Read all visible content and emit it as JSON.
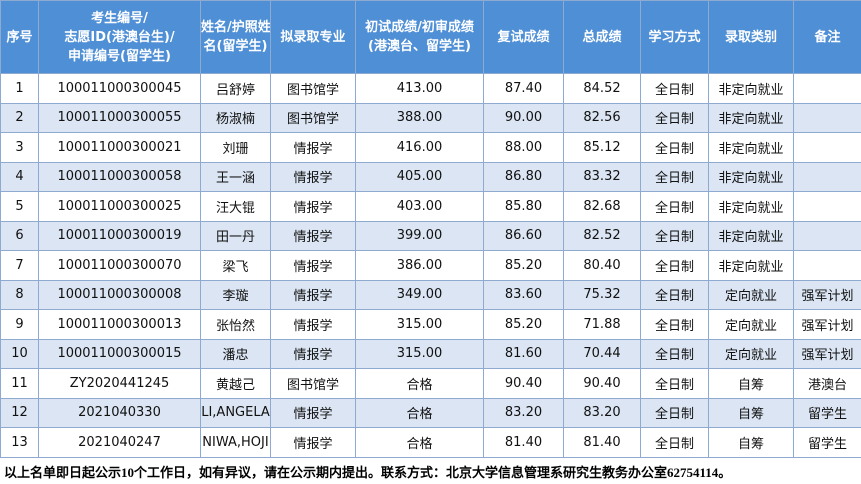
{
  "table": {
    "header": [
      [
        "序号"
      ],
      [
        "考生编号/",
        "志愿ID(港澳台生)/",
        "申请编号(留学生)"
      ],
      [
        "姓名/护照姓",
        "名(留学生)"
      ],
      [
        "拟录取专业"
      ],
      [
        "初试成绩/初审成绩",
        "(港澳台、留学生)"
      ],
      [
        "复试成绩"
      ],
      [
        "总成绩"
      ],
      [
        "学习方式"
      ],
      [
        "录取类别"
      ],
      [
        "备注"
      ]
    ],
    "rows": [
      [
        "1",
        "100011000300045",
        "吕舒婷",
        "图书馆学",
        "413.00",
        "87.40",
        "84.52",
        "全日制",
        "非定向就业",
        null
      ],
      [
        "2",
        "100011000300055",
        "杨淑楠",
        "图书馆学",
        "388.00",
        "90.00",
        "82.56",
        "全日制",
        "非定向就业",
        null
      ],
      [
        "3",
        "100011000300021",
        "刘珊",
        "情报学",
        "416.00",
        "88.00",
        "85.12",
        "全日制",
        "非定向就业",
        null
      ],
      [
        "4",
        "100011000300058",
        "王一涵",
        "情报学",
        "405.00",
        "86.80",
        "83.32",
        "全日制",
        "非定向就业",
        null
      ],
      [
        "5",
        "100011000300025",
        "汪大锟",
        "情报学",
        "403.00",
        "85.80",
        "82.68",
        "全日制",
        "非定向就业",
        null
      ],
      [
        "6",
        "100011000300019",
        "田一丹",
        "情报学",
        "399.00",
        "86.60",
        "82.52",
        "全日制",
        "非定向就业",
        null
      ],
      [
        "7",
        "100011000300070",
        "梁飞",
        "情报学",
        "386.00",
        "85.20",
        "80.40",
        "全日制",
        "非定向就业",
        null
      ],
      [
        "8",
        "100011000300008",
        "李璇",
        "情报学",
        "349.00",
        "83.60",
        "75.32",
        "全日制",
        "定向就业",
        "强军计划"
      ],
      [
        "9",
        "100011000300013",
        "张怡然",
        "情报学",
        "315.00",
        "85.20",
        "71.88",
        "全日制",
        "定向就业",
        "强军计划"
      ],
      [
        "10",
        "100011000300015",
        "潘忠",
        "情报学",
        "315.00",
        "81.60",
        "70.44",
        "全日制",
        "定向就业",
        "强军计划"
      ],
      [
        "11",
        "ZY2020441245",
        "黄越己",
        "图书馆学",
        "合格",
        "90.40",
        "90.40",
        "全日制",
        "自筹",
        "港澳台"
      ],
      [
        "12",
        "2021040330",
        "LI,ANGELA",
        "情报学",
        "合格",
        "83.20",
        "83.20",
        "全日制",
        "自筹",
        "留学生"
      ],
      [
        "13",
        "2021040247",
        "NIWA,HOJI",
        "情报学",
        "合格",
        "81.40",
        "81.40",
        "全日制",
        "自筹",
        "留学生"
      ]
    ]
  },
  "footer": "以上名单即日起公示10个工作日，如有异议，请在公示期内提出。联系方式：北京大学信息管理系研究生教务办公室62754114。"
}
